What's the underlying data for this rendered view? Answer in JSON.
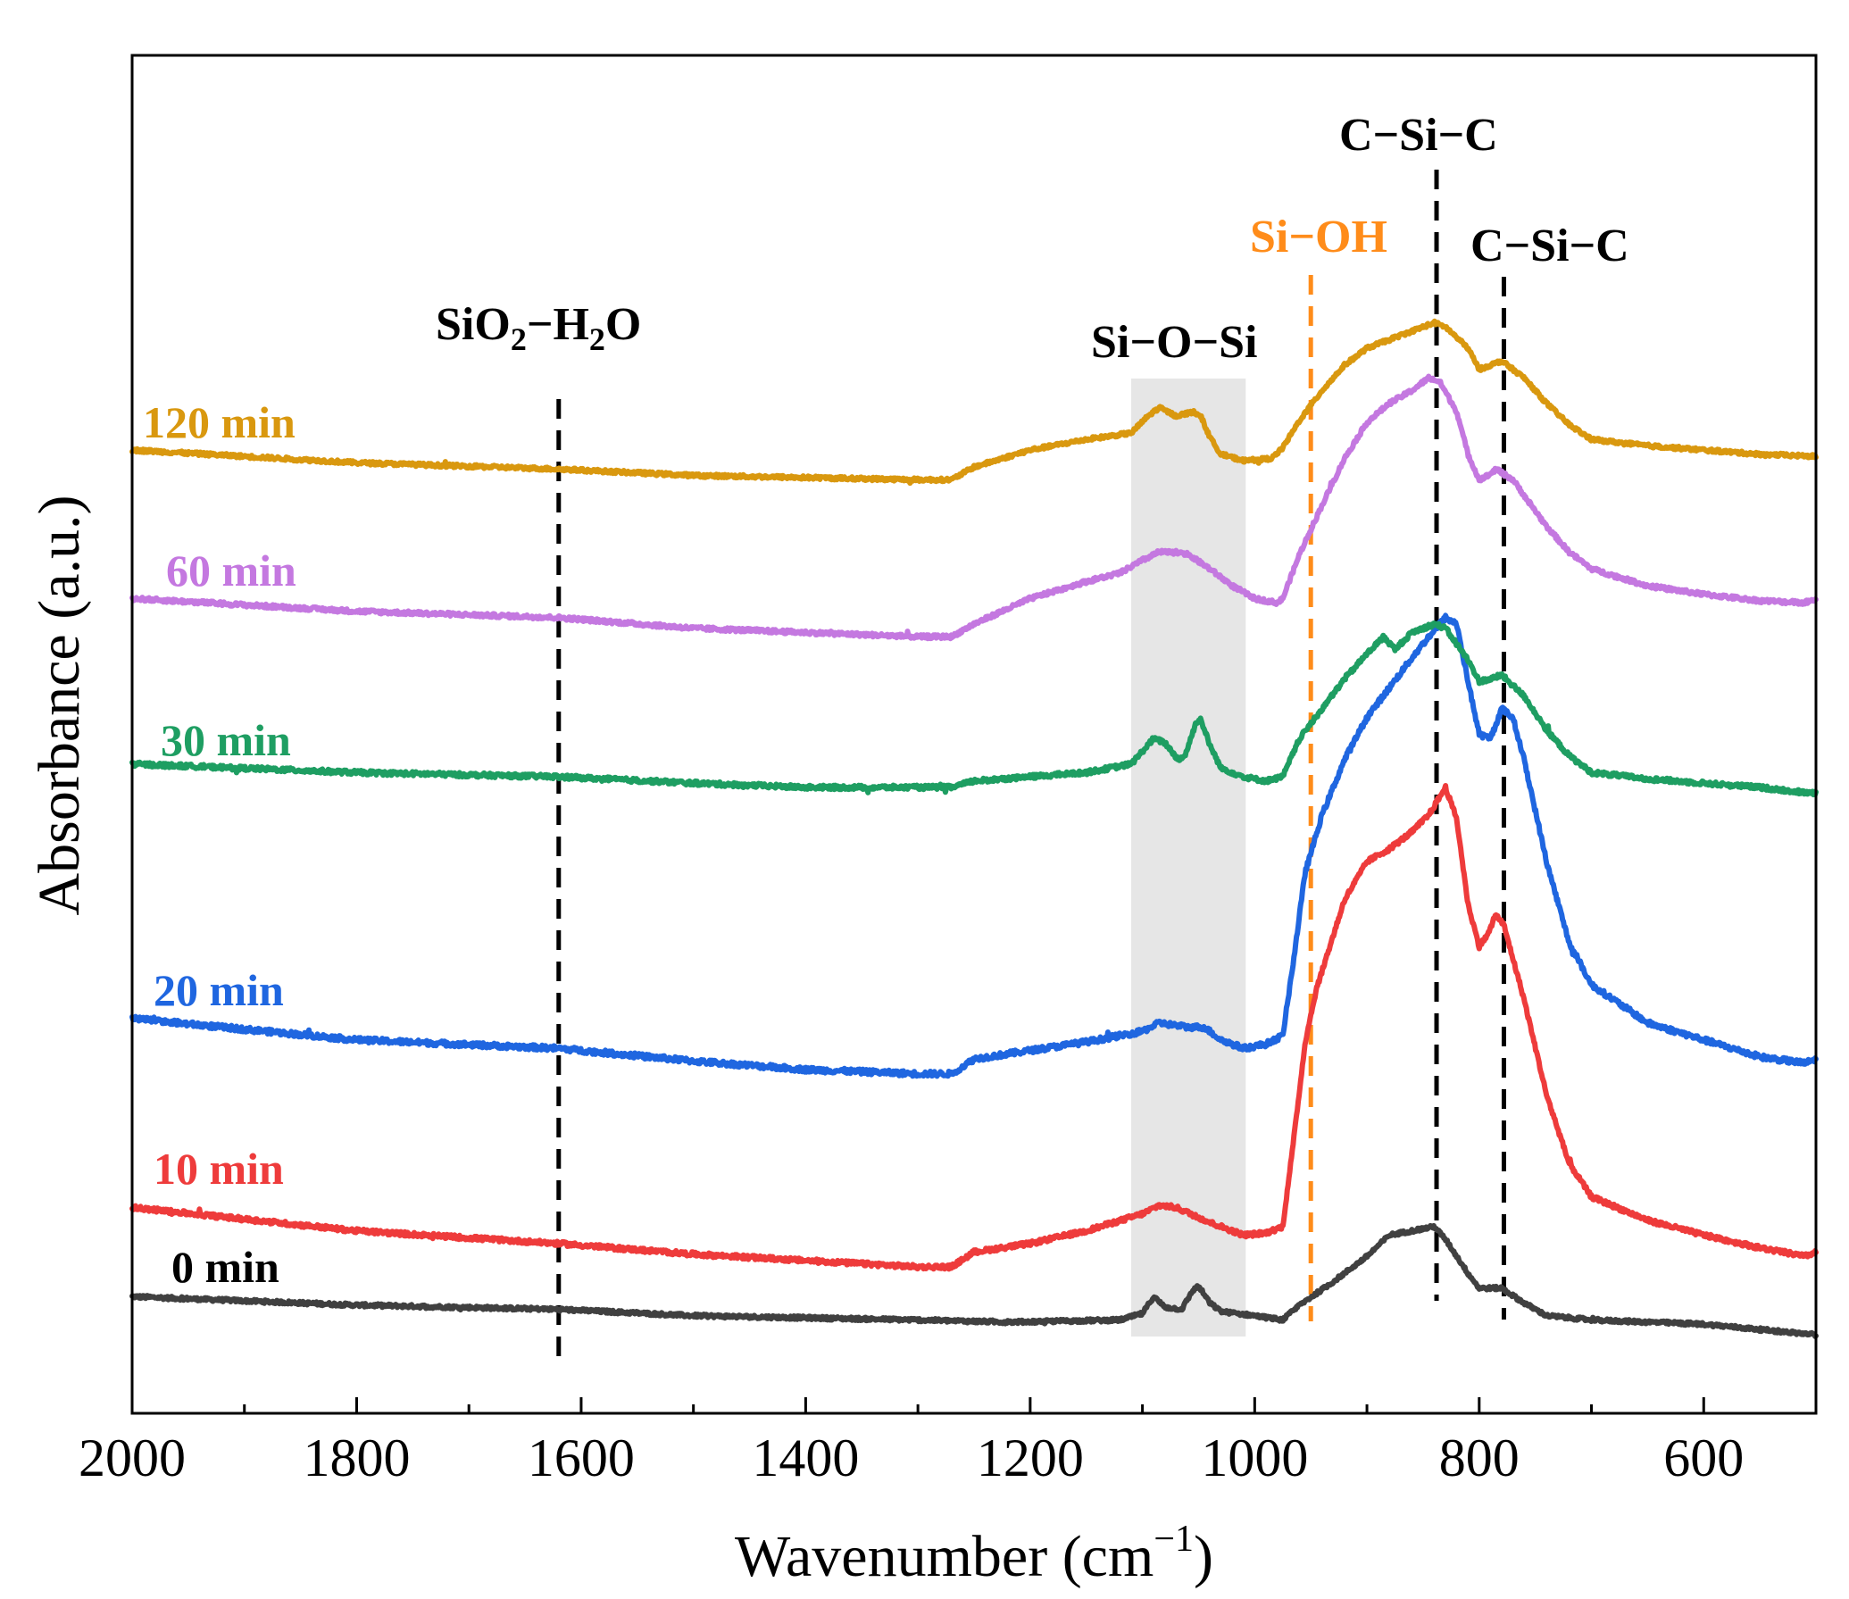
{
  "chart_data": {
    "type": "line",
    "title": "",
    "xlabel": "Wavenumber (cm",
    "xlabel_superscript": "−1",
    "xlabel_close": ")",
    "ylabel": "Absorbance (a.u.)",
    "xlim": [
      2000,
      500
    ],
    "ylim": [
      0,
      6.4
    ],
    "x_inverted": true,
    "y_ticks_shown": false,
    "grid": false,
    "x_ticks": [
      2000,
      1800,
      1600,
      1400,
      1200,
      1000,
      800,
      600
    ],
    "x_minor_ticks": [
      1900,
      1700,
      1500,
      1300,
      1100,
      900,
      700
    ],
    "series": [
      {
        "name": "0 min",
        "color": "#404040",
        "noise": 0.008,
        "points": [
          [
            2000,
            0.55
          ],
          [
            1800,
            0.51
          ],
          [
            1620,
            0.49
          ],
          [
            1500,
            0.46
          ],
          [
            1300,
            0.44
          ],
          [
            1220,
            0.43
          ],
          [
            1120,
            0.44
          ],
          [
            1100,
            0.47
          ],
          [
            1090,
            0.55
          ],
          [
            1080,
            0.5
          ],
          [
            1065,
            0.49
          ],
          [
            1055,
            0.58
          ],
          [
            1050,
            0.6
          ],
          [
            1040,
            0.52
          ],
          [
            1030,
            0.48
          ],
          [
            1000,
            0.46
          ],
          [
            975,
            0.44
          ],
          [
            960,
            0.51
          ],
          [
            930,
            0.62
          ],
          [
            900,
            0.74
          ],
          [
            880,
            0.84
          ],
          [
            860,
            0.86
          ],
          [
            840,
            0.88
          ],
          [
            830,
            0.82
          ],
          [
            810,
            0.66
          ],
          [
            800,
            0.59
          ],
          [
            780,
            0.59
          ],
          [
            760,
            0.52
          ],
          [
            740,
            0.46
          ],
          [
            700,
            0.44
          ],
          [
            600,
            0.42
          ],
          [
            500,
            0.37
          ]
        ]
      },
      {
        "name": "10 min",
        "color": "#ee3b3b",
        "noise": 0.01,
        "points": [
          [
            2000,
            0.97
          ],
          [
            1800,
            0.86
          ],
          [
            1620,
            0.8
          ],
          [
            1500,
            0.75
          ],
          [
            1400,
            0.72
          ],
          [
            1300,
            0.69
          ],
          [
            1270,
            0.69
          ],
          [
            1250,
            0.76
          ],
          [
            1200,
            0.8
          ],
          [
            1150,
            0.86
          ],
          [
            1100,
            0.94
          ],
          [
            1085,
            0.98
          ],
          [
            1070,
            0.97
          ],
          [
            1040,
            0.9
          ],
          [
            1010,
            0.84
          ],
          [
            990,
            0.85
          ],
          [
            975,
            0.88
          ],
          [
            965,
            1.3
          ],
          [
            955,
            1.75
          ],
          [
            945,
            2.0
          ],
          [
            920,
            2.42
          ],
          [
            900,
            2.6
          ],
          [
            880,
            2.66
          ],
          [
            860,
            2.74
          ],
          [
            845,
            2.82
          ],
          [
            830,
            2.95
          ],
          [
            820,
            2.8
          ],
          [
            810,
            2.4
          ],
          [
            800,
            2.2
          ],
          [
            792,
            2.26
          ],
          [
            785,
            2.35
          ],
          [
            778,
            2.3
          ],
          [
            760,
            1.95
          ],
          [
            740,
            1.5
          ],
          [
            720,
            1.18
          ],
          [
            700,
            1.02
          ],
          [
            650,
            0.91
          ],
          [
            600,
            0.84
          ],
          [
            550,
            0.78
          ],
          [
            510,
            0.74
          ],
          [
            500,
            0.76
          ]
        ]
      },
      {
        "name": "20 min",
        "color": "#1f66e0",
        "noise": 0.012,
        "points": [
          [
            2000,
            1.86
          ],
          [
            1800,
            1.76
          ],
          [
            1620,
            1.72
          ],
          [
            1500,
            1.66
          ],
          [
            1400,
            1.62
          ],
          [
            1300,
            1.6
          ],
          [
            1270,
            1.6
          ],
          [
            1250,
            1.67
          ],
          [
            1200,
            1.71
          ],
          [
            1150,
            1.75
          ],
          [
            1100,
            1.8
          ],
          [
            1085,
            1.84
          ],
          [
            1060,
            1.82
          ],
          [
            1045,
            1.82
          ],
          [
            1030,
            1.76
          ],
          [
            1010,
            1.72
          ],
          [
            990,
            1.74
          ],
          [
            975,
            1.78
          ],
          [
            965,
            2.15
          ],
          [
            955,
            2.55
          ],
          [
            940,
            2.82
          ],
          [
            920,
            3.08
          ],
          [
            900,
            3.28
          ],
          [
            880,
            3.42
          ],
          [
            860,
            3.56
          ],
          [
            845,
            3.66
          ],
          [
            830,
            3.75
          ],
          [
            820,
            3.72
          ],
          [
            810,
            3.45
          ],
          [
            800,
            3.2
          ],
          [
            790,
            3.18
          ],
          [
            780,
            3.32
          ],
          [
            770,
            3.28
          ],
          [
            760,
            3.08
          ],
          [
            740,
            2.6
          ],
          [
            720,
            2.22
          ],
          [
            700,
            2.02
          ],
          [
            650,
            1.84
          ],
          [
            600,
            1.76
          ],
          [
            550,
            1.68
          ],
          [
            510,
            1.65
          ],
          [
            500,
            1.67
          ]
        ]
      },
      {
        "name": "30 min",
        "color": "#1e9e62",
        "noise": 0.01,
        "points": [
          [
            2000,
            3.06
          ],
          [
            1800,
            3.02
          ],
          [
            1620,
            3.0
          ],
          [
            1500,
            2.97
          ],
          [
            1400,
            2.95
          ],
          [
            1300,
            2.95
          ],
          [
            1270,
            2.95
          ],
          [
            1250,
            2.98
          ],
          [
            1200,
            3.0
          ],
          [
            1150,
            3.02
          ],
          [
            1110,
            3.06
          ],
          [
            1090,
            3.18
          ],
          [
            1080,
            3.16
          ],
          [
            1068,
            3.08
          ],
          [
            1062,
            3.1
          ],
          [
            1052,
            3.26
          ],
          [
            1048,
            3.27
          ],
          [
            1040,
            3.15
          ],
          [
            1030,
            3.04
          ],
          [
            1010,
            3.0
          ],
          [
            990,
            2.98
          ],
          [
            975,
            3.0
          ],
          [
            960,
            3.18
          ],
          [
            940,
            3.32
          ],
          [
            920,
            3.46
          ],
          [
            900,
            3.58
          ],
          [
            885,
            3.66
          ],
          [
            875,
            3.6
          ],
          [
            860,
            3.68
          ],
          [
            840,
            3.72
          ],
          [
            830,
            3.7
          ],
          [
            810,
            3.55
          ],
          [
            800,
            3.45
          ],
          [
            790,
            3.46
          ],
          [
            780,
            3.48
          ],
          [
            760,
            3.38
          ],
          [
            740,
            3.22
          ],
          [
            720,
            3.1
          ],
          [
            700,
            3.02
          ],
          [
            650,
            2.99
          ],
          [
            600,
            2.97
          ],
          [
            550,
            2.95
          ],
          [
            500,
            2.92
          ]
        ]
      },
      {
        "name": "60 min",
        "color": "#c478e0",
        "noise": 0.009,
        "points": [
          [
            2000,
            3.84
          ],
          [
            1800,
            3.78
          ],
          [
            1620,
            3.75
          ],
          [
            1500,
            3.7
          ],
          [
            1400,
            3.68
          ],
          [
            1300,
            3.66
          ],
          [
            1270,
            3.66
          ],
          [
            1250,
            3.72
          ],
          [
            1200,
            3.84
          ],
          [
            1150,
            3.92
          ],
          [
            1120,
            3.96
          ],
          [
            1100,
            4.02
          ],
          [
            1085,
            4.06
          ],
          [
            1060,
            4.05
          ],
          [
            1040,
            3.98
          ],
          [
            1020,
            3.9
          ],
          [
            1000,
            3.84
          ],
          [
            980,
            3.82
          ],
          [
            975,
            3.84
          ],
          [
            960,
            4.05
          ],
          [
            940,
            4.28
          ],
          [
            920,
            4.5
          ],
          [
            900,
            4.67
          ],
          [
            880,
            4.76
          ],
          [
            860,
            4.82
          ],
          [
            845,
            4.88
          ],
          [
            835,
            4.86
          ],
          [
            820,
            4.72
          ],
          [
            810,
            4.52
          ],
          [
            800,
            4.4
          ],
          [
            792,
            4.42
          ],
          [
            785,
            4.45
          ],
          [
            770,
            4.4
          ],
          [
            740,
            4.18
          ],
          [
            720,
            4.06
          ],
          [
            700,
            3.98
          ],
          [
            650,
            3.9
          ],
          [
            600,
            3.86
          ],
          [
            550,
            3.83
          ],
          [
            510,
            3.82
          ],
          [
            500,
            3.84
          ]
        ]
      },
      {
        "name": "120 min",
        "color": "#d9980f",
        "noise": 0.008,
        "points": [
          [
            2000,
            4.54
          ],
          [
            1800,
            4.48
          ],
          [
            1620,
            4.45
          ],
          [
            1500,
            4.42
          ],
          [
            1400,
            4.41
          ],
          [
            1300,
            4.4
          ],
          [
            1270,
            4.4
          ],
          [
            1250,
            4.46
          ],
          [
            1200,
            4.54
          ],
          [
            1150,
            4.59
          ],
          [
            1110,
            4.62
          ],
          [
            1095,
            4.7
          ],
          [
            1085,
            4.74
          ],
          [
            1070,
            4.7
          ],
          [
            1055,
            4.72
          ],
          [
            1048,
            4.7
          ],
          [
            1040,
            4.6
          ],
          [
            1030,
            4.52
          ],
          [
            1010,
            4.49
          ],
          [
            985,
            4.5
          ],
          [
            975,
            4.55
          ],
          [
            960,
            4.68
          ],
          [
            940,
            4.82
          ],
          [
            920,
            4.94
          ],
          [
            900,
            5.02
          ],
          [
            880,
            5.06
          ],
          [
            860,
            5.1
          ],
          [
            840,
            5.14
          ],
          [
            830,
            5.12
          ],
          [
            810,
            5.02
          ],
          [
            800,
            4.92
          ],
          [
            790,
            4.94
          ],
          [
            780,
            4.96
          ],
          [
            760,
            4.88
          ],
          [
            740,
            4.76
          ],
          [
            720,
            4.66
          ],
          [
            700,
            4.59
          ],
          [
            650,
            4.56
          ],
          [
            600,
            4.54
          ],
          [
            550,
            4.52
          ],
          [
            500,
            4.51
          ]
        ]
      }
    ],
    "label_colors": [
      "#000000",
      "#ee3b3b",
      "#1f66e0",
      "#1e9e62",
      "#c478e0",
      "#d9980f"
    ],
    "annotations": [
      {
        "text_main": "SiO",
        "sub1": "2",
        "text_mid": "−H",
        "sub2": "2",
        "text_end": "O",
        "x": 1620,
        "color": "#000000",
        "line_color": "#000000"
      },
      {
        "text": "Si−O−Si",
        "x_range": [
          1110,
          1008
        ],
        "shade_color": "#e6e6e6"
      },
      {
        "text": "Si−OH",
        "x": 950,
        "color": "#ff8c1a",
        "line_color": "#ff8c1a"
      },
      {
        "text": "C−Si−C",
        "x": 838,
        "color": "#000000",
        "line_color": "#000000"
      },
      {
        "text": "C−Si−C",
        "x": 778,
        "color": "#000000",
        "line_color": "#000000"
      }
    ]
  }
}
